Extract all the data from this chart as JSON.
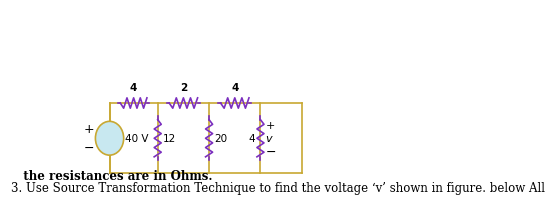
{
  "title_line1": "3. Use Source Transformation Technique to find the voltage ‘v’ shown in figure. below All",
  "title_line2": "   the resistances are in Ohms.",
  "wire_color": "#C8A832",
  "resistor_color": "#7B2FBE",
  "source_fill": "#C8E8F0",
  "source_edge": "#C8A832",
  "text_color": "#000000",
  "bg_color": "#FFFFFF",
  "series_resistors": [
    "4",
    "2",
    "4"
  ],
  "shunt_resistors": [
    "12",
    "20",
    "4"
  ],
  "source_label": "40 V",
  "voltage_label": "v",
  "fig_width": 4.74,
  "fig_height": 1.87,
  "title_fontsize": 8.5,
  "label_fontsize": 8.0,
  "circuit_label_fontsize": 7.5
}
